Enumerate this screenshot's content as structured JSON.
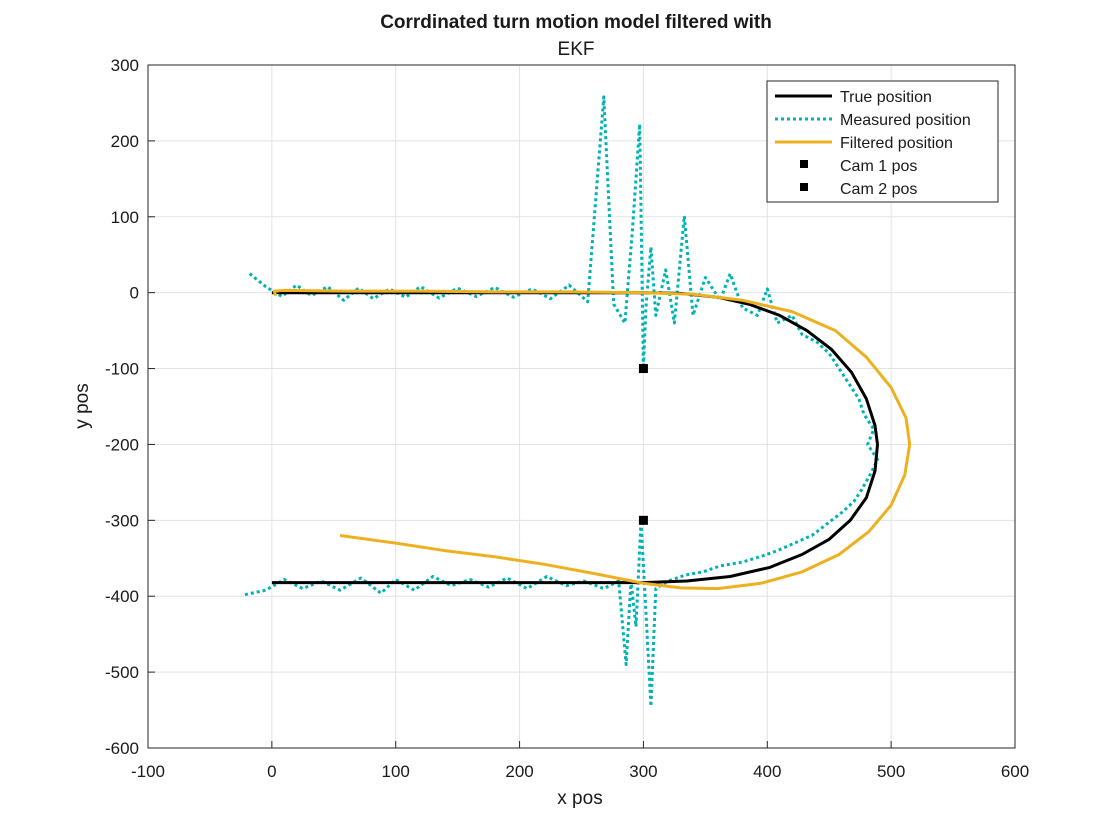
{
  "chart_data": {
    "type": "line",
    "title": "Corrdinated turn motion model filtered with",
    "subtitle": "EKF",
    "xlabel": "x pos",
    "ylabel": "y pos",
    "xlim": [
      -100,
      600
    ],
    "ylim": [
      -600,
      300
    ],
    "xticks": [
      -100,
      0,
      100,
      200,
      300,
      400,
      500,
      600
    ],
    "yticks": [
      -600,
      -500,
      -400,
      -300,
      -200,
      -100,
      0,
      100,
      200,
      300
    ],
    "grid": true,
    "legend_position": "top-right",
    "series": [
      {
        "name": "True position",
        "style": "solid",
        "color": "#000000",
        "points": [
          [
            0,
            0
          ],
          [
            60,
            0
          ],
          [
            120,
            0
          ],
          [
            180,
            0
          ],
          [
            240,
            0
          ],
          [
            300,
            0
          ],
          [
            330,
            -1
          ],
          [
            360,
            -6
          ],
          [
            385,
            -15
          ],
          [
            410,
            -30
          ],
          [
            432,
            -50
          ],
          [
            452,
            -75
          ],
          [
            468,
            -105
          ],
          [
            480,
            -140
          ],
          [
            487,
            -175
          ],
          [
            489,
            -200
          ],
          [
            487,
            -235
          ],
          [
            480,
            -270
          ],
          [
            467,
            -300
          ],
          [
            450,
            -325
          ],
          [
            428,
            -345
          ],
          [
            402,
            -362
          ],
          [
            370,
            -374
          ],
          [
            335,
            -380
          ],
          [
            300,
            -382
          ],
          [
            240,
            -382
          ],
          [
            180,
            -382
          ],
          [
            120,
            -382
          ],
          [
            60,
            -382
          ],
          [
            0,
            -382
          ]
        ]
      },
      {
        "name": "Measured position",
        "style": "dotted",
        "color": "#00b3b3",
        "points": [
          [
            -18,
            25
          ],
          [
            -5,
            8
          ],
          [
            8,
            -5
          ],
          [
            20,
            10
          ],
          [
            32,
            -4
          ],
          [
            45,
            8
          ],
          [
            58,
            -10
          ],
          [
            70,
            6
          ],
          [
            82,
            -8
          ],
          [
            95,
            5
          ],
          [
            108,
            -6
          ],
          [
            120,
            8
          ],
          [
            135,
            -7
          ],
          [
            150,
            6
          ],
          [
            165,
            -5
          ],
          [
            180,
            7
          ],
          [
            195,
            -6
          ],
          [
            210,
            5
          ],
          [
            225,
            -8
          ],
          [
            240,
            10
          ],
          [
            255,
            -12
          ],
          [
            268,
            258
          ],
          [
            276,
            -15
          ],
          [
            285,
            -40
          ],
          [
            291,
            80
          ],
          [
            297,
            222
          ],
          [
            300,
            -100
          ],
          [
            302,
            -20
          ],
          [
            306,
            60
          ],
          [
            310,
            -30
          ],
          [
            318,
            30
          ],
          [
            325,
            -40
          ],
          [
            333,
            101
          ],
          [
            340,
            -30
          ],
          [
            350,
            20
          ],
          [
            362,
            -10
          ],
          [
            370,
            25
          ],
          [
            380,
            -20
          ],
          [
            392,
            -30
          ],
          [
            400,
            5
          ],
          [
            408,
            -40
          ],
          [
            420,
            -30
          ],
          [
            428,
            -55
          ],
          [
            440,
            -65
          ],
          [
            450,
            -80
          ],
          [
            458,
            -100
          ],
          [
            466,
            -120
          ],
          [
            474,
            -140
          ],
          [
            478,
            -160
          ],
          [
            486,
            -180
          ],
          [
            481,
            -200
          ],
          [
            489,
            -220
          ],
          [
            483,
            -240
          ],
          [
            476,
            -260
          ],
          [
            470,
            -275
          ],
          [
            460,
            -290
          ],
          [
            448,
            -305
          ],
          [
            436,
            -320
          ],
          [
            422,
            -330
          ],
          [
            408,
            -340
          ],
          [
            394,
            -348
          ],
          [
            380,
            -355
          ],
          [
            362,
            -360
          ],
          [
            348,
            -368
          ],
          [
            334,
            -372
          ],
          [
            320,
            -380
          ],
          [
            310,
            -390
          ],
          [
            306,
            -545
          ],
          [
            302,
            -420
          ],
          [
            298,
            -300
          ],
          [
            294,
            -440
          ],
          [
            290,
            -380
          ],
          [
            286,
            -490
          ],
          [
            280,
            -380
          ],
          [
            268,
            -390
          ],
          [
            252,
            -380
          ],
          [
            238,
            -386
          ],
          [
            222,
            -374
          ],
          [
            206,
            -390
          ],
          [
            190,
            -376
          ],
          [
            175,
            -388
          ],
          [
            160,
            -378
          ],
          [
            145,
            -386
          ],
          [
            130,
            -374
          ],
          [
            115,
            -392
          ],
          [
            100,
            -378
          ],
          [
            88,
            -396
          ],
          [
            72,
            -376
          ],
          [
            55,
            -392
          ],
          [
            40,
            -380
          ],
          [
            25,
            -390
          ],
          [
            10,
            -378
          ],
          [
            -5,
            -392
          ],
          [
            -22,
            -398
          ]
        ]
      },
      {
        "name": "Filtered position",
        "style": "solid",
        "color": "#edb120",
        "points": [
          [
            3,
            -4
          ],
          [
            2,
            2
          ],
          [
            10,
            3
          ],
          [
            60,
            2
          ],
          [
            120,
            2
          ],
          [
            180,
            1
          ],
          [
            240,
            1
          ],
          [
            300,
            0
          ],
          [
            340,
            -2
          ],
          [
            380,
            -10
          ],
          [
            420,
            -25
          ],
          [
            455,
            -50
          ],
          [
            480,
            -85
          ],
          [
            500,
            -125
          ],
          [
            512,
            -165
          ],
          [
            515,
            -200
          ],
          [
            511,
            -240
          ],
          [
            500,
            -280
          ],
          [
            482,
            -315
          ],
          [
            458,
            -345
          ],
          [
            428,
            -368
          ],
          [
            395,
            -383
          ],
          [
            360,
            -390
          ],
          [
            330,
            -389
          ],
          [
            300,
            -383
          ],
          [
            260,
            -370
          ],
          [
            220,
            -358
          ],
          [
            180,
            -348
          ],
          [
            140,
            -340
          ],
          [
            100,
            -330
          ],
          [
            55,
            -320
          ]
        ]
      },
      {
        "name": "Cam 1 pos",
        "style": "marker-square",
        "color": "#000000",
        "points": [
          [
            300,
            -100
          ]
        ]
      },
      {
        "name": "Cam 2 pos",
        "style": "marker-square",
        "color": "#000000",
        "points": [
          [
            300,
            -300
          ]
        ]
      }
    ]
  }
}
